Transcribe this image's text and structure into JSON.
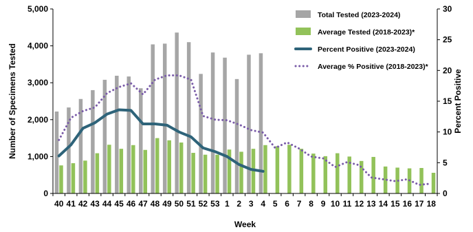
{
  "chart_data": {
    "type": "bar",
    "xlabel": "Week",
    "ylabel": "Number of Specimens Tested",
    "y2label": "Percent Positive",
    "ylim": [
      0,
      5000
    ],
    "y2lim": [
      0,
      30
    ],
    "yticks": [
      "0",
      "1,000",
      "2,000",
      "3,000",
      "4,000",
      "5,000"
    ],
    "y2ticks": [
      "0",
      "5",
      "10",
      "15",
      "20",
      "25",
      "30"
    ],
    "legend_position": "top-right",
    "categories": [
      "40",
      "41",
      "42",
      "43",
      "44",
      "45",
      "46",
      "47",
      "48",
      "49",
      "50",
      "51",
      "52",
      "53",
      "1",
      "2",
      "3",
      "4",
      "5",
      "6",
      "7",
      "8",
      "9",
      "10",
      "11",
      "12",
      "13",
      "14",
      "15",
      "16",
      "17",
      "18"
    ],
    "series": [
      {
        "name": "Total Tested (2023-2024)",
        "kind": "bar",
        "color": "#a6a6a6",
        "values": [
          2220,
          2330,
          2560,
          2800,
          3080,
          3190,
          3170,
          2850,
          4040,
          4060,
          4360,
          4100,
          3240,
          3820,
          3680,
          3100,
          3760,
          3800,
          null,
          null,
          null,
          null,
          null,
          null,
          null,
          null,
          null,
          null,
          null,
          null,
          null,
          null
        ]
      },
      {
        "name": "Average Tested (2018-2023)*",
        "kind": "bar",
        "color": "#92c25a",
        "values": [
          760,
          820,
          890,
          1090,
          1320,
          1210,
          1310,
          1180,
          1500,
          1440,
          1380,
          1100,
          1050,
          1050,
          1190,
          1130,
          1210,
          1310,
          1280,
          1320,
          1210,
          1080,
          1010,
          1090,
          1000,
          880,
          990,
          730,
          700,
          680,
          690,
          560
        ]
      },
      {
        "name": "Percent Positive (2023-2024)",
        "kind": "line",
        "axis": "right",
        "color": "#2e6379",
        "values": [
          6.1,
          7.9,
          10.6,
          11.5,
          12.9,
          13.6,
          13.5,
          11.3,
          11.3,
          11.1,
          10.0,
          9.2,
          7.4,
          6.8,
          6.0,
          4.7,
          3.9,
          3.6,
          null,
          null,
          null,
          null,
          null,
          null,
          null,
          null,
          null,
          null,
          null,
          null,
          null,
          null
        ]
      },
      {
        "name": "Average % Positive (2018-2023)*",
        "kind": "line",
        "axis": "right",
        "color": "#7a5ca8",
        "values": [
          8.7,
          12.3,
          13.4,
          14.0,
          16.3,
          17.3,
          17.9,
          16.1,
          18.5,
          19.2,
          19.2,
          18.5,
          12.6,
          12.0,
          11.9,
          11.2,
          10.3,
          9.9,
          7.4,
          8.3,
          7.3,
          6.0,
          5.7,
          4.3,
          5.1,
          4.6,
          2.6,
          2.3,
          2.0,
          2.3,
          1.4,
          1.6
        ]
      }
    ]
  }
}
